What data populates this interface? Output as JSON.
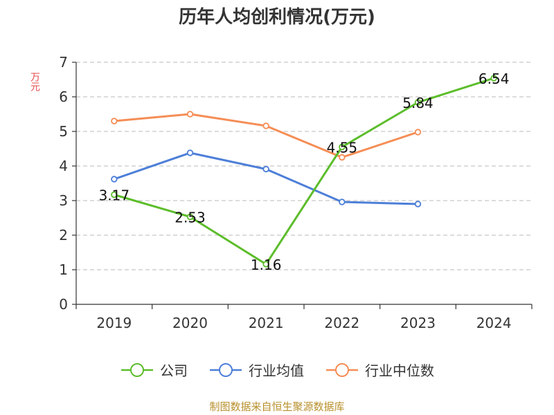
{
  "chart_data": {
    "type": "line",
    "title": "历年人均创利情况(万元)",
    "ylabel": "万元",
    "xlabel": "",
    "categories": [
      "2019",
      "2020",
      "2021",
      "2022",
      "2023",
      "2024"
    ],
    "ylim": [
      0,
      7
    ],
    "yticks": [
      0,
      1,
      2,
      3,
      4,
      5,
      6,
      7
    ],
    "grid": true,
    "legend_position": "bottom",
    "series": [
      {
        "name": "公司",
        "color": "#5cbd2b",
        "values": [
          3.17,
          2.53,
          1.16,
          4.55,
          5.84,
          6.54
        ],
        "labels": [
          "3.17",
          "2.53",
          "1.16",
          "4.55",
          "5.84",
          "6.54"
        ]
      },
      {
        "name": "行业均值",
        "color": "#4d7fd8",
        "values": [
          3.62,
          4.38,
          3.91,
          2.96,
          2.9,
          null
        ]
      },
      {
        "name": "行业中位数",
        "color": "#f58d55",
        "values": [
          5.3,
          5.5,
          5.16,
          4.25,
          4.98,
          null
        ]
      }
    ]
  },
  "footer": "制图数据来自恒生聚源数据库"
}
